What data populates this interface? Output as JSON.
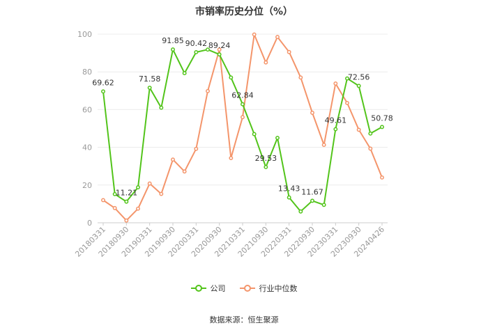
{
  "chart_data": {
    "type": "line",
    "title": "市销率历史分位（%）",
    "ylim": [
      0,
      100
    ],
    "yticks": [
      0,
      20,
      40,
      60,
      80,
      100
    ],
    "grid": true,
    "legend_position": "bottom",
    "x": [
      "20180331",
      "20180630",
      "20180930",
      "20181231",
      "20190331",
      "20190630",
      "20190930",
      "20191231",
      "20200331",
      "20200630",
      "20200930",
      "20201231",
      "20210331",
      "20210630",
      "20210930",
      "20211231",
      "20220331",
      "20220630",
      "20220930",
      "20221231",
      "20230331",
      "20230630",
      "20230930",
      "20231231",
      "20240426"
    ],
    "xtick_labels": [
      "20180331",
      "20180930",
      "20190331",
      "20190930",
      "20200331",
      "20200930",
      "20210331",
      "20210930",
      "20220331",
      "20220930",
      "20230331",
      "20230930",
      "20240426"
    ],
    "series": [
      {
        "name": "公司",
        "color": "#52c41a",
        "values": [
          69.62,
          15.2,
          11.21,
          18.8,
          71.58,
          61.0,
          91.85,
          79.3,
          90.42,
          91.8,
          89.24,
          77.0,
          62.84,
          47.0,
          29.53,
          45.0,
          13.43,
          6.0,
          11.67,
          9.5,
          49.61,
          76.5,
          72.56,
          47.3,
          50.78
        ],
        "labels": {
          "0": "69.62",
          "2": "11.21",
          "4": "71.58",
          "6": "91.85",
          "8": "90.42",
          "10": "89.24",
          "12": "62.84",
          "14": "29.53",
          "16": "13.43",
          "18": "11.67",
          "20": "49.61",
          "22": "72.56",
          "24": "50.78"
        }
      },
      {
        "name": "行业中位数",
        "color": "#f4956b",
        "values": [
          12.0,
          7.8,
          1.2,
          7.5,
          20.8,
          15.3,
          33.5,
          27.2,
          39.2,
          69.8,
          91.8,
          34.3,
          56.0,
          99.8,
          85.0,
          98.5,
          90.5,
          77.0,
          58.3,
          41.3,
          73.8,
          63.5,
          49.3,
          39.3,
          24.0
        ]
      }
    ]
  },
  "source": "数据来源：恒生聚源"
}
